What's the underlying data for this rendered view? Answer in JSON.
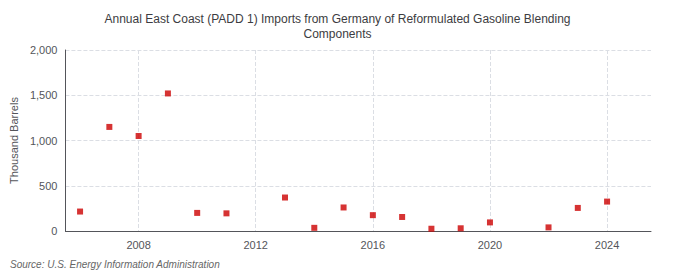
{
  "chart_data": {
    "type": "scatter",
    "title": "Annual East Coast (PADD 1) Imports from Germany of Reformulated Gasoline Blending\nComponents",
    "ylabel": "Thousand Barrels",
    "source": "Source: U.S. Energy Information Administration",
    "x": [
      2006,
      2007,
      2008,
      2009,
      2010,
      2011,
      2013,
      2014,
      2015,
      2016,
      2017,
      2018,
      2019,
      2020,
      2022,
      2023,
      2024
    ],
    "values": [
      215,
      1150,
      1050,
      1520,
      200,
      195,
      370,
      35,
      260,
      175,
      155,
      25,
      30,
      95,
      40,
      255,
      325
    ],
    "color": "#cc0000",
    "marker": "square",
    "xlim": [
      2005.5,
      2025.5
    ],
    "xticks": [
      2008,
      2012,
      2016,
      2020,
      2024
    ],
    "ylim": [
      0,
      2000
    ],
    "yticks": [
      0,
      500,
      {
        "value": 1000,
        "label": "1,000"
      },
      {
        "value": 1500,
        "label": "1,500"
      },
      {
        "value": 2000,
        "label": "2,000"
      }
    ],
    "grid": true
  }
}
